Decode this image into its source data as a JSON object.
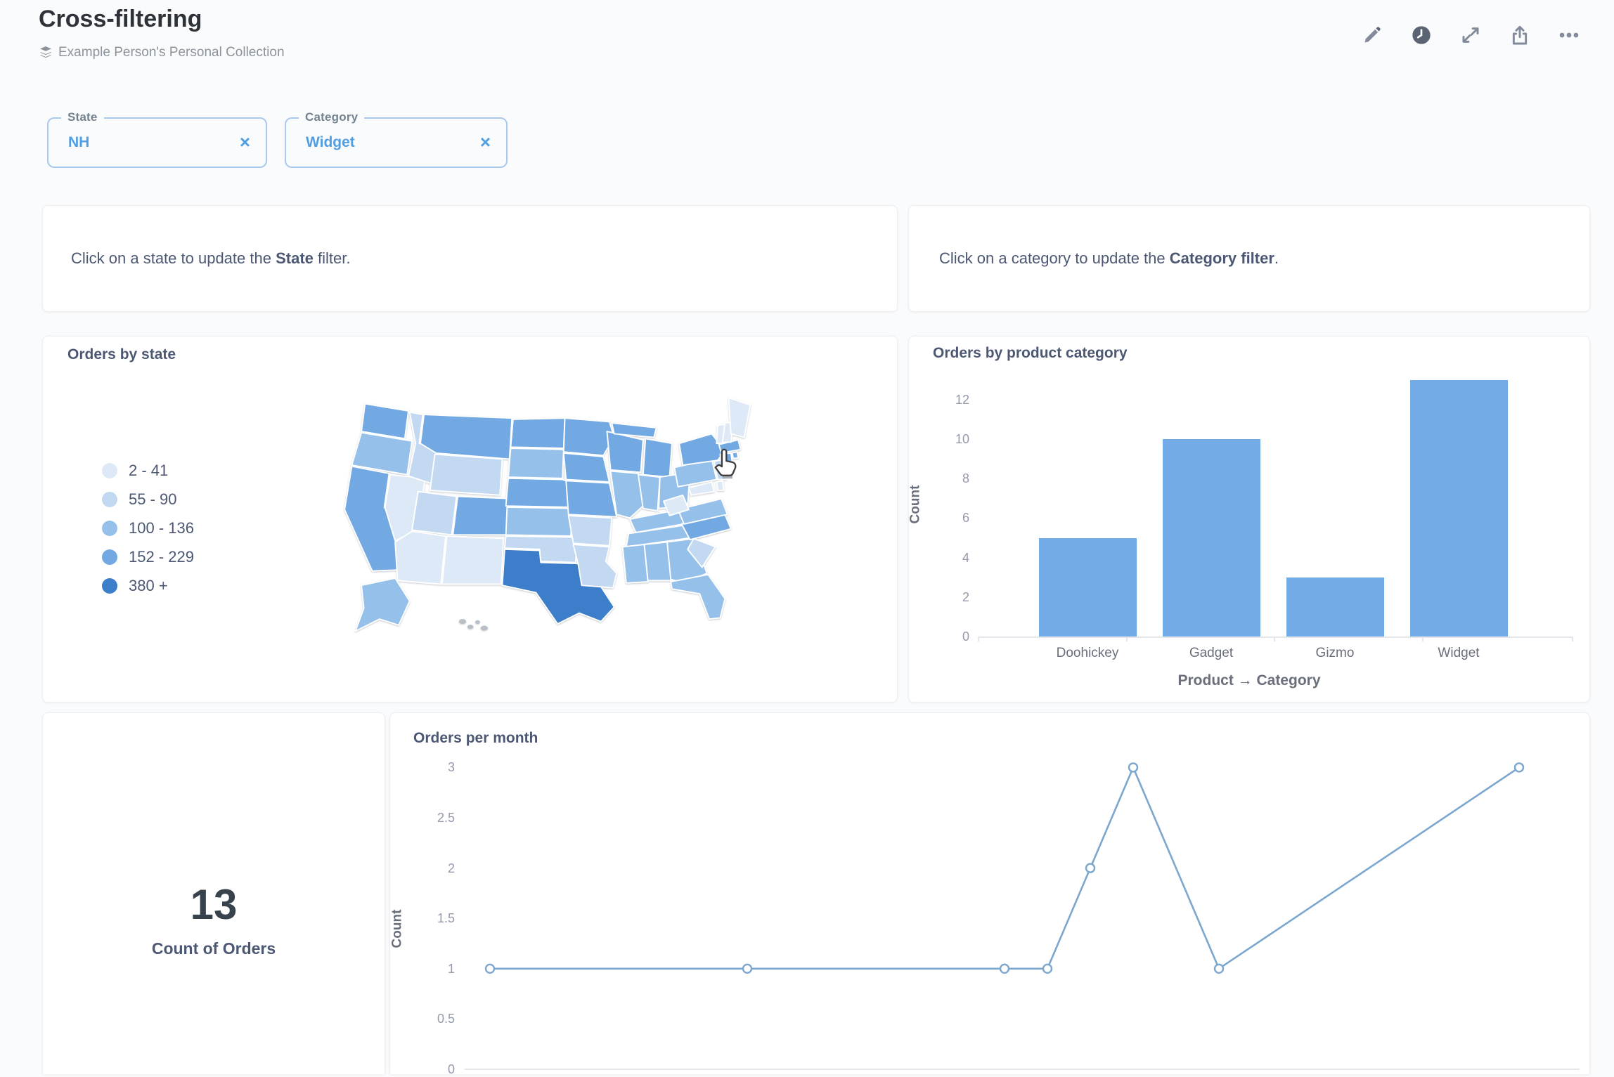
{
  "page": {
    "background": "#fafbfc"
  },
  "header": {
    "title": "Cross-filtering",
    "collection": "Example Person's Personal Collection",
    "actions": [
      {
        "name": "edit-dashboard",
        "icon": "pencil-icon"
      },
      {
        "name": "revision-history",
        "icon": "clock-icon"
      },
      {
        "name": "enter-fullscreen",
        "icon": "expand-icon"
      },
      {
        "name": "sharing",
        "icon": "share-icon"
      },
      {
        "name": "more-options",
        "icon": "ellipsis-icon"
      }
    ]
  },
  "filters": [
    {
      "label": "State",
      "value": "NH",
      "remove": "×"
    },
    {
      "label": "Category",
      "value": "Widget",
      "remove": "×"
    }
  ],
  "text_cards": [
    {
      "prefix": "Click on a state to update the ",
      "bold": "State",
      "suffix": " filter."
    },
    {
      "prefix": "Click on a category to update the ",
      "bold": "Category filter",
      "suffix": "."
    }
  ],
  "cards": {
    "scalar": {
      "value": "13",
      "label": "Count of Orders"
    }
  },
  "chart_data": [
    {
      "type": "heatmap",
      "subtype": "us-state-choropleth",
      "title": "Orders by state",
      "legend": [
        {
          "label": "2 - 41",
          "color": "#dde9f6"
        },
        {
          "label": "55 - 90",
          "color": "#c2d9f1"
        },
        {
          "label": "100 - 136",
          "color": "#94c0ea"
        },
        {
          "label": "152 - 229",
          "color": "#72a9e2"
        },
        {
          "label": "380 +",
          "color": "#3c7ec9"
        }
      ],
      "no_data_color": "#b9bfc7",
      "cursor_over_state": "NH",
      "state_buckets": {
        "WA": 3,
        "OR": 2,
        "CA": 3,
        "NV": 0,
        "ID": 1,
        "MT": 3,
        "WY": 1,
        "UT": 1,
        "CO": 3,
        "AZ": 0,
        "NM": 0,
        "ND": 3,
        "SD": 2,
        "NE": 3,
        "KS": 2,
        "OK": 1,
        "TX": 4,
        "MN": 3,
        "IA": 3,
        "MO": 3,
        "AR": 1,
        "LA": 1,
        "WI": 3,
        "IL": 2,
        "MIUP": 3,
        "MI": 3,
        "IN": 2,
        "OH": 2,
        "KY": 2,
        "TN": 2,
        "MS": 2,
        "AL": 2,
        "GA": 2,
        "FL": 2,
        "SC": 1,
        "NC": 3,
        "VA": 2,
        "WV": 0,
        "PA": 2,
        "NY": 3,
        "NJ": 1,
        "MD": 0,
        "DE": 0,
        "MA": 3,
        "CT": 3,
        "RI": 3,
        "VT": 0,
        "NH": 0,
        "ME": 0,
        "AK": 2
      }
    },
    {
      "type": "bar",
      "title": "Orders by product category",
      "categories": [
        "Doohickey",
        "Gadget",
        "Gizmo",
        "Widget"
      ],
      "values": [
        5,
        10,
        3,
        13
      ],
      "xlabel": "Product → Category",
      "ylabel": "Count",
      "yticks": [
        0,
        2,
        4,
        6,
        8,
        10,
        12
      ],
      "ylim": [
        0,
        13.5
      ],
      "grid": false,
      "bar_color": "#73abe6"
    },
    {
      "type": "line",
      "title": "Orders per month",
      "ylabel": "Count",
      "yticks": [
        0,
        0.5,
        1,
        1.5,
        2,
        2.5,
        3
      ],
      "ylim": [
        0,
        3.2
      ],
      "x_month_offsets": [
        0,
        6,
        12,
        13,
        14,
        15,
        17,
        24
      ],
      "values": [
        1,
        1,
        1,
        1,
        2,
        3,
        1,
        3
      ],
      "line_color": "#7ba7cf",
      "marker": "open-circle"
    }
  ]
}
